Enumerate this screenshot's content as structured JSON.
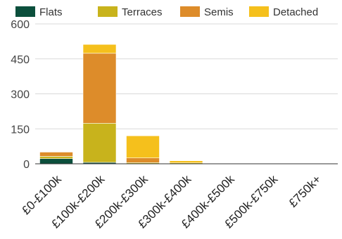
{
  "chart_data": {
    "type": "bar",
    "stacked": true,
    "categories": [
      "£0-£100k",
      "£100k-£200k",
      "£200k-£300k",
      "£300k-£400k",
      "£400k-£500k",
      "£500k-£750k",
      "£750k+"
    ],
    "series": [
      {
        "name": "Flats",
        "color": "#0b4f3c",
        "values": [
          22,
          6,
          0,
          0,
          0,
          0,
          0
        ]
      },
      {
        "name": "Terraces",
        "color": "#c8b31c",
        "values": [
          10,
          168,
          5,
          4,
          0,
          0,
          0
        ]
      },
      {
        "name": "Semis",
        "color": "#dd8c2a",
        "values": [
          18,
          300,
          20,
          0,
          0,
          0,
          0
        ]
      },
      {
        "name": "Detached",
        "color": "#f5c01c",
        "values": [
          0,
          38,
          95,
          9,
          0,
          0,
          0
        ]
      }
    ],
    "y_ticks": [
      "0",
      "150",
      "300",
      "450",
      "600"
    ],
    "ylim": [
      0,
      600
    ],
    "grid": true,
    "legend_position": "top"
  }
}
